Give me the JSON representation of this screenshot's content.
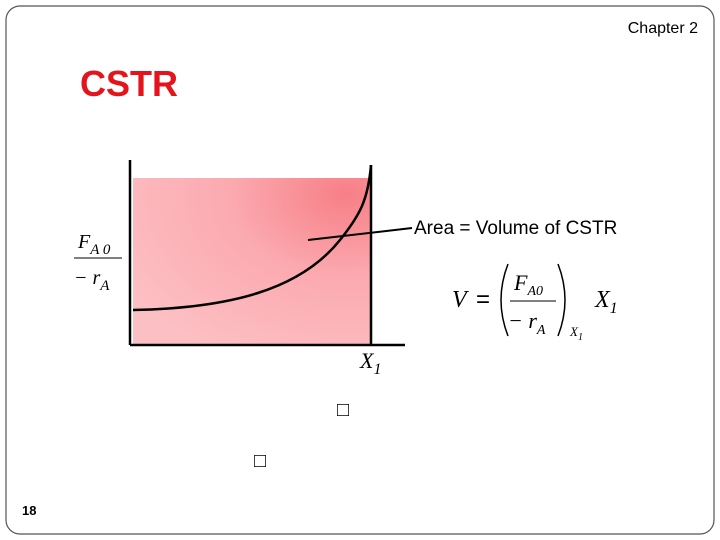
{
  "header": {
    "chapter": "Chapter 2"
  },
  "title": "CSTR",
  "graph": {
    "y_axis_label": {
      "numerator": {
        "symbol": "F",
        "subscript": "A 0"
      },
      "denominator": {
        "symbol": "− r",
        "subscript": "A"
      }
    },
    "x_axis_label": {
      "symbol": "X",
      "subscript": "1"
    },
    "annotation": "Area = Volume of CSTR"
  },
  "equation": {
    "lhs": "V",
    "relation": "=",
    "numerator": {
      "symbol": "F",
      "subscript": "A0"
    },
    "denominator": {
      "symbol": "− r",
      "subscript": "A"
    },
    "evaluated_at": {
      "symbol": "X",
      "subscript": "1"
    },
    "factor": {
      "symbol": "X",
      "subscript": "1"
    }
  },
  "placeholders": [
    "□",
    "□"
  ],
  "footer": {
    "page_number": "18"
  }
}
